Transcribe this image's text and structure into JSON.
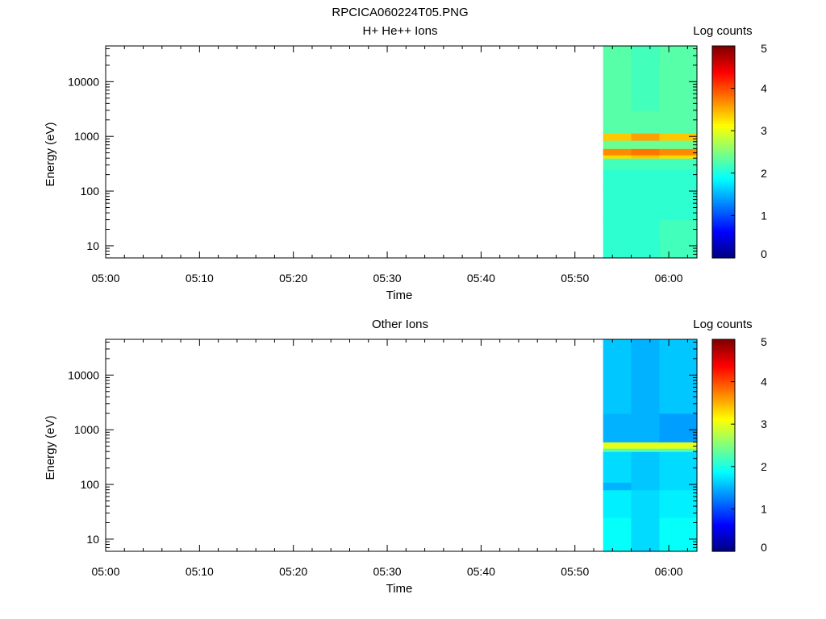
{
  "figure": {
    "title": "RPCICA060224T05.PNG"
  },
  "colormap": [
    "#00007f",
    "#0000ff",
    "#007fff",
    "#00ffff",
    "#7fff7f",
    "#ffff00",
    "#ff7f00",
    "#ff0000",
    "#7f0000"
  ],
  "chart_data": [
    {
      "type": "heatmap",
      "title": "H+ He++ Ions",
      "xlabel": "Time",
      "ylabel": "Energy (eV)",
      "x_ticks": [
        "05:00",
        "05:10",
        "05:20",
        "05:30",
        "05:40",
        "05:50",
        "06:00"
      ],
      "x_range": [
        "05:00",
        "06:03"
      ],
      "y_scale": "log",
      "y_range": [
        6,
        45000
      ],
      "y_ticks": [
        10,
        100,
        1000,
        10000
      ],
      "colorbar": {
        "label": "Log counts",
        "range": [
          0,
          5
        ],
        "ticks": [
          0,
          1,
          2,
          3,
          4,
          5
        ]
      },
      "data_time_columns": [
        {
          "start": "05:53",
          "end": "05:56"
        },
        {
          "start": "05:56",
          "end": "05:59"
        },
        {
          "start": "05:59",
          "end": "06:03"
        }
      ],
      "energy_bands": [
        {
          "e_low": 6,
          "e_high": 30,
          "values": [
            2.1,
            2.1,
            2.2
          ]
        },
        {
          "e_low": 30,
          "e_high": 100,
          "values": [
            2.1,
            2.1,
            2.1
          ]
        },
        {
          "e_low": 100,
          "e_high": 250,
          "values": [
            2.1,
            2.1,
            2.1
          ]
        },
        {
          "e_low": 250,
          "e_high": 400,
          "values": [
            2.2,
            2.2,
            2.2
          ]
        },
        {
          "e_low": 400,
          "e_high": 460,
          "values": [
            3.3,
            3.4,
            3.3
          ]
        },
        {
          "e_low": 460,
          "e_high": 600,
          "values": [
            3.7,
            3.8,
            3.7
          ]
        },
        {
          "e_low": 600,
          "e_high": 850,
          "values": [
            2.4,
            2.4,
            2.4
          ]
        },
        {
          "e_low": 850,
          "e_high": 1150,
          "values": [
            3.4,
            3.6,
            3.4
          ]
        },
        {
          "e_low": 1150,
          "e_high": 3000,
          "values": [
            2.3,
            2.3,
            2.3
          ]
        },
        {
          "e_low": 3000,
          "e_high": 45000,
          "values": [
            2.3,
            2.2,
            2.3
          ]
        }
      ]
    },
    {
      "type": "heatmap",
      "title": "Other Ions",
      "xlabel": "Time",
      "ylabel": "Energy (eV)",
      "x_ticks": [
        "05:00",
        "05:10",
        "05:20",
        "05:30",
        "05:40",
        "05:50",
        "06:00"
      ],
      "x_range": [
        "05:00",
        "06:03"
      ],
      "y_scale": "log",
      "y_range": [
        6,
        45000
      ],
      "y_ticks": [
        10,
        100,
        1000,
        10000
      ],
      "colorbar": {
        "label": "Log counts",
        "range": [
          0,
          5
        ],
        "ticks": [
          0,
          1,
          2,
          3,
          4,
          5
        ]
      },
      "data_time_columns": [
        {
          "start": "05:53",
          "end": "05:56"
        },
        {
          "start": "05:56",
          "end": "05:59"
        },
        {
          "start": "05:59",
          "end": "06:03"
        }
      ],
      "energy_bands": [
        {
          "e_low": 6,
          "e_high": 25,
          "values": [
            1.9,
            1.7,
            1.9
          ]
        },
        {
          "e_low": 25,
          "e_high": 80,
          "values": [
            1.8,
            1.7,
            1.8
          ]
        },
        {
          "e_low": 80,
          "e_high": 110,
          "values": [
            1.5,
            1.6,
            1.7
          ]
        },
        {
          "e_low": 110,
          "e_high": 400,
          "values": [
            1.7,
            1.6,
            1.7
          ]
        },
        {
          "e_low": 400,
          "e_high": 460,
          "values": [
            2.3,
            2.3,
            2.3
          ]
        },
        {
          "e_low": 460,
          "e_high": 600,
          "values": [
            3.0,
            3.0,
            3.0
          ]
        },
        {
          "e_low": 600,
          "e_high": 2000,
          "values": [
            1.5,
            1.5,
            1.4
          ]
        },
        {
          "e_low": 2000,
          "e_high": 45000,
          "values": [
            1.6,
            1.5,
            1.6
          ]
        }
      ]
    }
  ]
}
